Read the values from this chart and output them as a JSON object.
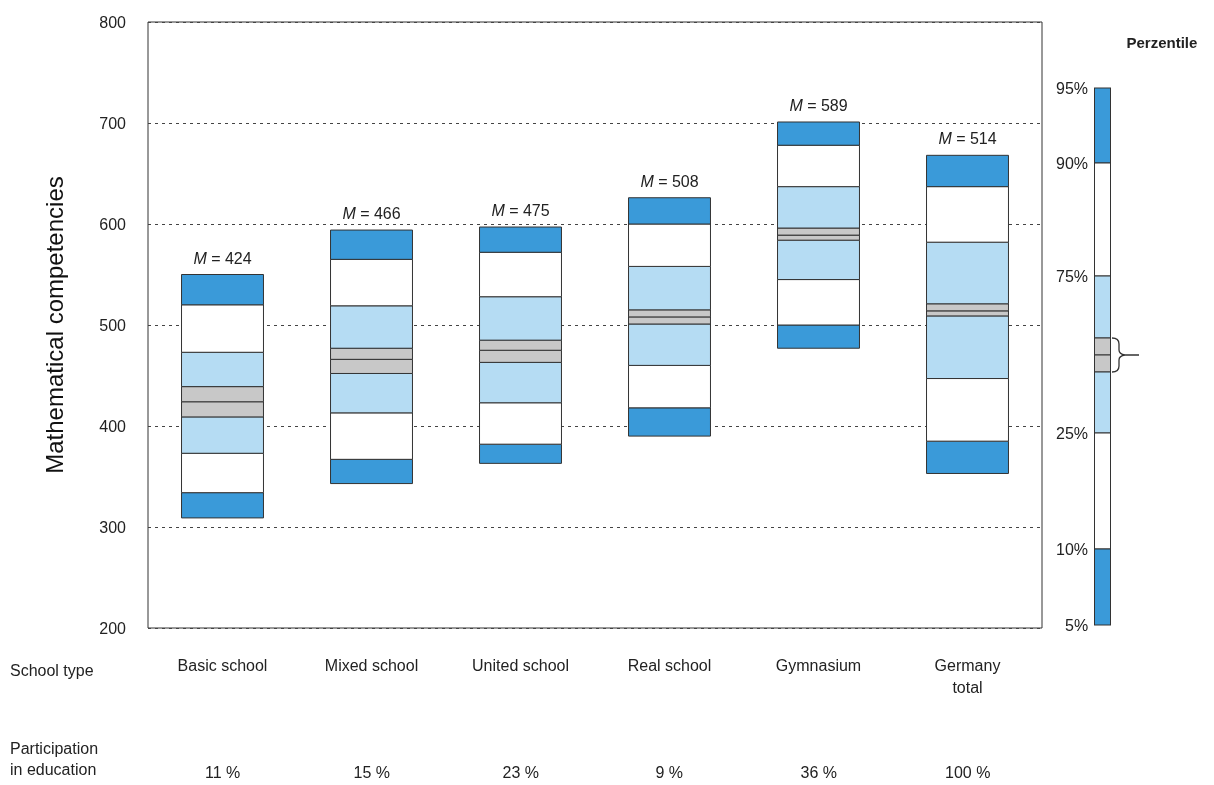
{
  "chart_data": {
    "type": "bar",
    "ylabel": "Mathematical competencies",
    "xlabel": "School type",
    "legend_title": "Perzentile",
    "categories": [
      "Basic school",
      "Mixed school",
      "United school",
      "Real school",
      "Gymnasium",
      "Germany\ntotal"
    ],
    "series": [
      {
        "color": "#3a9ad9",
        "base": [
          309,
          343,
          363,
          390,
          477,
          353
        ],
        "values": [
          25,
          24,
          19,
          28,
          23,
          32
        ]
      },
      {
        "color": "#ffffff",
        "base": [
          334,
          367,
          382,
          418,
          500,
          385
        ],
        "values": [
          39,
          46,
          41,
          42,
          45,
          62
        ]
      },
      {
        "color": "#b5dcf3",
        "base": [
          373,
          413,
          423,
          460,
          545,
          447
        ],
        "values": [
          36,
          39,
          40,
          41,
          39,
          62
        ]
      },
      {
        "color": "#c8c8c8",
        "base": [
          409,
          452,
          463,
          501,
          584,
          509
        ],
        "values": [
          15,
          14,
          12,
          7,
          5,
          5
        ]
      },
      {
        "color": "#c8c8c8",
        "base": [
          424,
          466,
          475,
          508,
          589,
          514
        ],
        "values": [
          15,
          11,
          10,
          7,
          7,
          7
        ]
      },
      {
        "color": "#b5dcf3",
        "base": [
          439,
          477,
          485,
          515,
          596,
          521
        ],
        "values": [
          34,
          42,
          43,
          43,
          41,
          61
        ]
      },
      {
        "color": "#ffffff",
        "base": [
          473,
          519,
          528,
          558,
          637,
          582
        ],
        "values": [
          47,
          46,
          44,
          42,
          41,
          55
        ]
      },
      {
        "color": "#3a9ad9",
        "base": [
          520,
          565,
          572,
          600,
          678,
          637
        ],
        "values": [
          30,
          29,
          25,
          26,
          23,
          31
        ]
      }
    ],
    "ylim": [
      200,
      800
    ],
    "yticks": [
      200,
      300,
      400,
      500,
      600,
      700,
      800
    ],
    "grid": "y",
    "annotations": [
      "M = 424",
      "M = 466",
      "M = 475",
      "M = 508",
      "M = 589",
      "M = 514",
      "Participation\nin education",
      "11 %",
      "15 %",
      "23 %",
      "9 %",
      "36 %",
      "100 %",
      "95%",
      "90%",
      "75%",
      "25%",
      "10%",
      "5%"
    ]
  }
}
